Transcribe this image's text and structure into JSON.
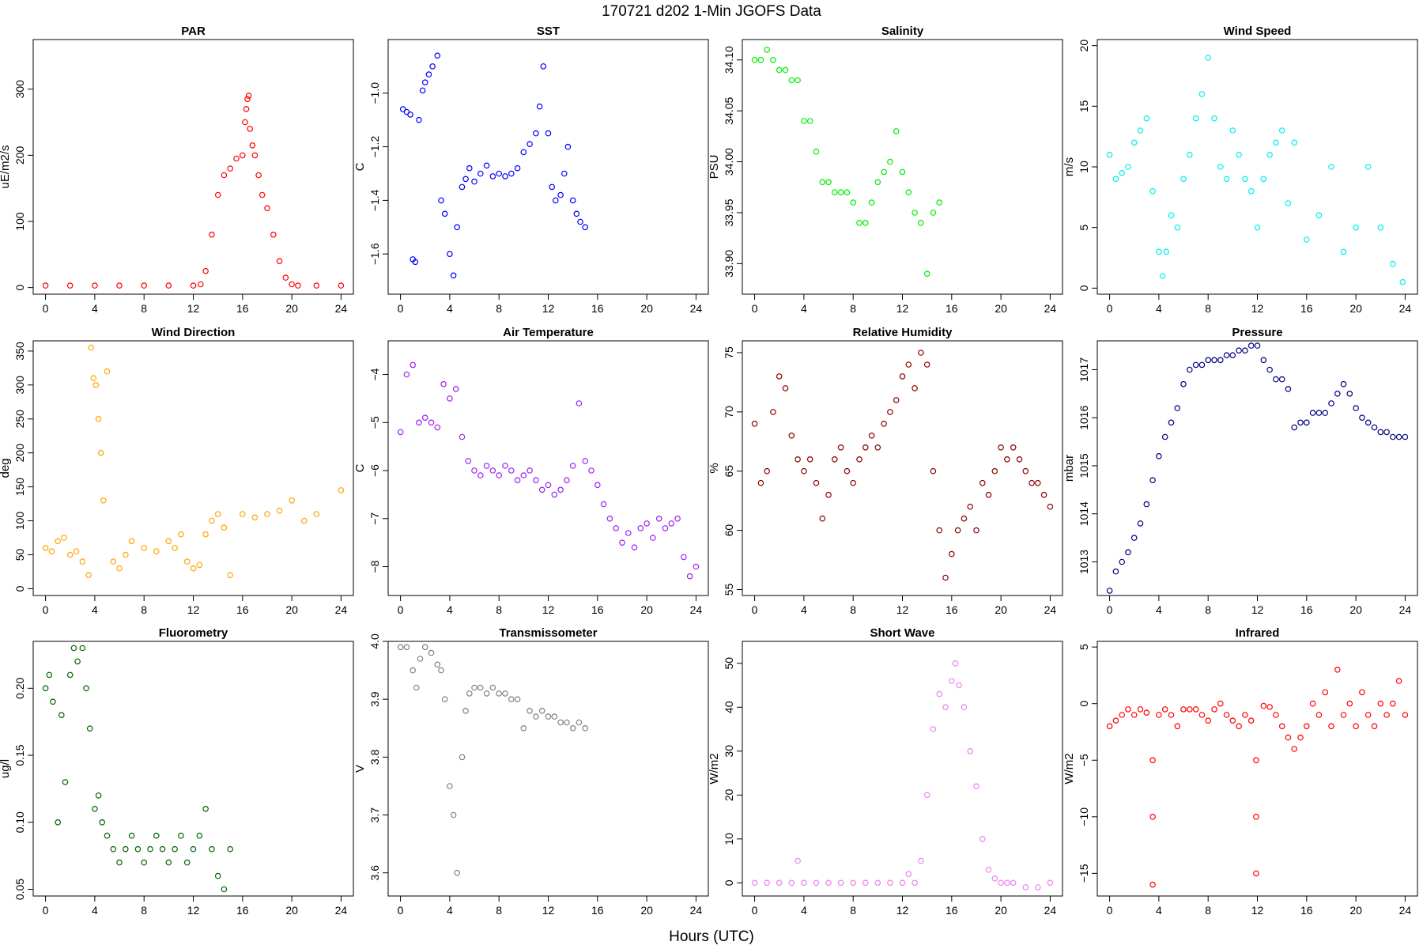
{
  "figure_title": "170721   d202   1-Min  JGOFS Data",
  "x_axis_label": "Hours (UTC)",
  "chart_data": [
    {
      "type": "scatter",
      "title": "PAR",
      "ylabel": "uE/m2/s",
      "color": "#ff0000",
      "xlim": [
        -1,
        25
      ],
      "ylim": [
        -10,
        375
      ],
      "xticks": [
        0,
        4,
        8,
        12,
        16,
        20,
        24
      ],
      "yticks": [
        0,
        100,
        200,
        300
      ],
      "x": [
        0,
        2,
        4,
        6,
        8,
        10,
        12,
        12.6,
        13,
        13.5,
        14,
        14.5,
        15,
        15.5,
        16,
        16.3,
        16.5,
        16.8,
        17,
        17.3,
        17.6,
        18,
        18.5,
        19,
        19.5,
        20,
        20.5,
        22,
        24,
        16.2,
        16.4,
        16.6
      ],
      "y": [
        3,
        3,
        3,
        3,
        3,
        3,
        3,
        5,
        25,
        80,
        140,
        170,
        180,
        195,
        200,
        270,
        290,
        215,
        200,
        170,
        140,
        120,
        80,
        40,
        15,
        5,
        3,
        3,
        3,
        250,
        285,
        240
      ]
    },
    {
      "type": "scatter",
      "title": "SST",
      "ylabel": "C",
      "color": "#0000ff",
      "xlim": [
        -1,
        25
      ],
      "ylim": [
        -1.75,
        -0.8
      ],
      "xticks": [
        0,
        4,
        8,
        12,
        16,
        20,
        24
      ],
      "yticks": [
        -1.6,
        -1.4,
        -1.2,
        -1.0
      ],
      "x": [
        0.2,
        0.5,
        0.8,
        1,
        1.2,
        1.5,
        1.8,
        2,
        2.3,
        2.6,
        3,
        3.3,
        3.6,
        4,
        4.3,
        4.6,
        5,
        5.3,
        5.6,
        6,
        6.5,
        7,
        7.5,
        8,
        8.5,
        9,
        9.5,
        10,
        10.5,
        11,
        11.3,
        11.6,
        12,
        12.3,
        12.6,
        13,
        13.3,
        13.6,
        14,
        14.3,
        14.6,
        15
      ],
      "y": [
        -1.06,
        -1.07,
        -1.08,
        -1.62,
        -1.63,
        -1.1,
        -0.99,
        -0.96,
        -0.93,
        -0.9,
        -0.86,
        -1.4,
        -1.45,
        -1.6,
        -1.68,
        -1.5,
        -1.35,
        -1.32,
        -1.28,
        -1.33,
        -1.3,
        -1.27,
        -1.31,
        -1.3,
        -1.31,
        -1.3,
        -1.28,
        -1.22,
        -1.19,
        -1.15,
        -1.05,
        -0.9,
        -1.15,
        -1.35,
        -1.4,
        -1.38,
        -1.3,
        -1.2,
        -1.4,
        -1.45,
        -1.48,
        -1.5
      ]
    },
    {
      "type": "scatter",
      "title": "Salinity",
      "ylabel": "PSU",
      "color": "#00ee00",
      "xlim": [
        -1,
        25
      ],
      "ylim": [
        33.87,
        34.12
      ],
      "xticks": [
        0,
        4,
        8,
        12,
        16,
        20,
        24
      ],
      "yticks": [
        33.9,
        33.95,
        34.0,
        34.05,
        34.1
      ],
      "x": [
        0,
        0.5,
        1,
        1.5,
        2,
        2.5,
        3,
        3.5,
        4,
        4.5,
        5,
        5.5,
        6,
        6.5,
        7,
        7.5,
        8,
        8.5,
        9,
        9.5,
        10,
        10.5,
        11,
        11.5,
        12,
        12.5,
        13,
        13.5,
        14,
        14.5,
        15
      ],
      "y": [
        34.1,
        34.1,
        34.11,
        34.1,
        34.09,
        34.09,
        34.08,
        34.08,
        34.04,
        34.04,
        34.01,
        33.98,
        33.98,
        33.97,
        33.97,
        33.97,
        33.96,
        33.94,
        33.94,
        33.96,
        33.98,
        33.99,
        34.0,
        34.03,
        33.99,
        33.97,
        33.95,
        33.94,
        33.89,
        33.95,
        33.96
      ]
    },
    {
      "type": "scatter",
      "title": "Wind Speed",
      "ylabel": "m/s",
      "color": "#00eeee",
      "xlim": [
        -1,
        25
      ],
      "ylim": [
        -0.5,
        20.5
      ],
      "xticks": [
        0,
        4,
        8,
        12,
        16,
        20,
        24
      ],
      "yticks": [
        0,
        5,
        10,
        15,
        20
      ],
      "x": [
        0,
        0.5,
        1,
        1.5,
        2,
        2.5,
        3,
        3.5,
        4,
        4.3,
        4.6,
        5,
        5.5,
        6,
        6.5,
        7,
        7.5,
        8,
        8.5,
        9,
        9.5,
        10,
        10.5,
        11,
        11.5,
        12,
        12.5,
        13,
        13.5,
        14,
        14.5,
        15,
        16,
        17,
        18,
        19,
        20,
        21,
        22,
        23,
        23.8
      ],
      "y": [
        11,
        9,
        9.5,
        10,
        12,
        13,
        14,
        8,
        3,
        1,
        3,
        6,
        5,
        9,
        11,
        14,
        16,
        19,
        14,
        10,
        9,
        13,
        11,
        9,
        8,
        5,
        9,
        11,
        12,
        13,
        7,
        12,
        4,
        6,
        10,
        3,
        5,
        10,
        5,
        2,
        0.5
      ]
    },
    {
      "type": "scatter",
      "title": "Wind Direction",
      "ylabel": "deg",
      "color": "#ffa500",
      "xlim": [
        -1,
        25
      ],
      "ylim": [
        -10,
        365
      ],
      "xticks": [
        0,
        4,
        8,
        12,
        16,
        20,
        24
      ],
      "yticks": [
        0,
        50,
        100,
        150,
        200,
        250,
        300,
        350
      ],
      "x": [
        0,
        0.5,
        1,
        1.5,
        2,
        2.5,
        3,
        3.5,
        3.7,
        3.9,
        4.1,
        4.3,
        4.5,
        4.7,
        5,
        5.5,
        6,
        6.5,
        7,
        8,
        9,
        10,
        10.5,
        11,
        11.5,
        12,
        12.5,
        13,
        13.5,
        14,
        14.5,
        15,
        16,
        17,
        18,
        19,
        20,
        21,
        22,
        24
      ],
      "y": [
        60,
        55,
        70,
        75,
        50,
        55,
        40,
        20,
        355,
        310,
        300,
        250,
        200,
        130,
        320,
        40,
        30,
        50,
        70,
        60,
        55,
        70,
        60,
        80,
        40,
        30,
        35,
        80,
        100,
        110,
        90,
        20,
        110,
        105,
        110,
        115,
        130,
        100,
        110,
        145
      ]
    },
    {
      "type": "scatter",
      "title": "Air Temperature",
      "ylabel": "C",
      "color": "#a020f0",
      "xlim": [
        -1,
        25
      ],
      "ylim": [
        -8.6,
        -3.3
      ],
      "xticks": [
        0,
        4,
        8,
        12,
        16,
        20,
        24
      ],
      "yticks": [
        -8,
        -7,
        -6,
        -5,
        -4
      ],
      "x": [
        0,
        0.5,
        1,
        1.5,
        2,
        2.5,
        3,
        3.5,
        4,
        4.5,
        5,
        5.5,
        6,
        6.5,
        7,
        7.5,
        8,
        8.5,
        9,
        9.5,
        10,
        10.5,
        11,
        11.5,
        12,
        12.5,
        13,
        13.5,
        14,
        14.5,
        15,
        15.5,
        16,
        16.5,
        17,
        17.5,
        18,
        18.5,
        19,
        19.5,
        20,
        20.5,
        21,
        21.5,
        22,
        22.5,
        23,
        23.5,
        24
      ],
      "y": [
        -5.2,
        -4,
        -3.8,
        -5,
        -4.9,
        -5,
        -5.1,
        -4.2,
        -4.5,
        -4.3,
        -5.3,
        -5.8,
        -6,
        -6.1,
        -5.9,
        -6,
        -6.1,
        -5.9,
        -6,
        -6.2,
        -6.1,
        -6,
        -6.2,
        -6.4,
        -6.3,
        -6.5,
        -6.4,
        -6.2,
        -5.9,
        -4.6,
        -5.8,
        -6,
        -6.3,
        -6.7,
        -7,
        -7.2,
        -7.5,
        -7.3,
        -7.6,
        -7.2,
        -7.1,
        -7.4,
        -7,
        -7.2,
        -7.1,
        -7,
        -7.8,
        -8.2,
        -8
      ]
    },
    {
      "type": "scatter",
      "title": "Relative Humidity",
      "ylabel": "%",
      "color": "#8b0000",
      "xlim": [
        -1,
        25
      ],
      "ylim": [
        54.5,
        76
      ],
      "xticks": [
        0,
        4,
        8,
        12,
        16,
        20,
        24
      ],
      "yticks": [
        55,
        60,
        65,
        70,
        75
      ],
      "x": [
        0,
        0.5,
        1,
        1.5,
        2,
        2.5,
        3,
        3.5,
        4,
        4.5,
        5,
        5.5,
        6,
        6.5,
        7,
        7.5,
        8,
        8.5,
        9,
        9.5,
        10,
        10.5,
        11,
        11.5,
        12,
        12.5,
        13,
        13.5,
        14,
        14.5,
        15,
        15.5,
        16,
        16.5,
        17,
        17.5,
        18,
        18.5,
        19,
        19.5,
        20,
        20.5,
        21,
        21.5,
        22,
        22.5,
        23,
        23.5,
        24
      ],
      "y": [
        69,
        64,
        65,
        70,
        73,
        72,
        68,
        66,
        65,
        66,
        64,
        61,
        63,
        66,
        67,
        65,
        64,
        66,
        67,
        68,
        67,
        69,
        70,
        71,
        73,
        74,
        72,
        75,
        74,
        65,
        60,
        56,
        58,
        60,
        61,
        62,
        60,
        64,
        63,
        65,
        67,
        66,
        67,
        66,
        65,
        64,
        64,
        63,
        62
      ]
    },
    {
      "type": "scatter",
      "title": "Pressure",
      "ylabel": "mbar",
      "color": "#000080",
      "xlim": [
        -1,
        25
      ],
      "ylim": [
        1012.3,
        1017.6
      ],
      "xticks": [
        0,
        4,
        8,
        12,
        16,
        20,
        24
      ],
      "yticks": [
        1013,
        1014,
        1015,
        1016,
        1017
      ],
      "x": [
        0,
        0.5,
        1,
        1.5,
        2,
        2.5,
        3,
        3.5,
        4,
        4.5,
        5,
        5.5,
        6,
        6.5,
        7,
        7.5,
        8,
        8.5,
        9,
        9.5,
        10,
        10.5,
        11,
        11.5,
        12,
        12.5,
        13,
        13.5,
        14,
        14.5,
        15,
        15.5,
        16,
        16.5,
        17,
        17.5,
        18,
        18.5,
        19,
        19.5,
        20,
        20.5,
        21,
        21.5,
        22,
        22.5,
        23,
        23.5,
        24
      ],
      "y": [
        1012.4,
        1012.8,
        1013,
        1013.2,
        1013.5,
        1013.8,
        1014.2,
        1014.7,
        1015.2,
        1015.6,
        1015.9,
        1016.2,
        1016.7,
        1017,
        1017.1,
        1017.1,
        1017.2,
        1017.2,
        1017.2,
        1017.3,
        1017.3,
        1017.4,
        1017.4,
        1017.5,
        1017.5,
        1017.2,
        1017,
        1016.8,
        1016.8,
        1016.6,
        1015.8,
        1015.9,
        1015.9,
        1016.1,
        1016.1,
        1016.1,
        1016.3,
        1016.5,
        1016.7,
        1016.5,
        1016.2,
        1016,
        1015.9,
        1015.8,
        1015.7,
        1015.7,
        1015.6,
        1015.6,
        1015.6
      ]
    },
    {
      "type": "scatter",
      "title": "Fluorometry",
      "ylabel": "ug/l",
      "color": "#006400",
      "xlim": [
        -1,
        25
      ],
      "ylim": [
        0.045,
        0.235
      ],
      "xticks": [
        0,
        4,
        8,
        12,
        16,
        20,
        24
      ],
      "yticks": [
        0.05,
        0.1,
        0.15,
        0.2
      ],
      "x": [
        0,
        0.3,
        0.6,
        1,
        1.3,
        1.6,
        2,
        2.3,
        2.6,
        3,
        3.3,
        3.6,
        4,
        4.3,
        4.6,
        5,
        5.5,
        6,
        6.5,
        7,
        7.5,
        8,
        8.5,
        9,
        9.5,
        10,
        10.5,
        11,
        11.5,
        12,
        12.5,
        13,
        13.5,
        14,
        14.5,
        15
      ],
      "y": [
        0.2,
        0.21,
        0.19,
        0.1,
        0.18,
        0.13,
        0.21,
        0.23,
        0.22,
        0.23,
        0.2,
        0.17,
        0.11,
        0.12,
        0.1,
        0.09,
        0.08,
        0.07,
        0.08,
        0.09,
        0.08,
        0.07,
        0.08,
        0.09,
        0.08,
        0.07,
        0.08,
        0.09,
        0.07,
        0.08,
        0.09,
        0.11,
        0.08,
        0.06,
        0.05,
        0.08
      ]
    },
    {
      "type": "scatter",
      "title": "Transmissometer",
      "ylabel": "V",
      "color": "#808080",
      "xlim": [
        -1,
        25
      ],
      "ylim": [
        3.56,
        4.0
      ],
      "xticks": [
        0,
        4,
        8,
        12,
        16,
        20,
        24
      ],
      "yticks": [
        3.6,
        3.7,
        3.8,
        3.9,
        4.0
      ],
      "x": [
        0,
        0.5,
        1,
        1.3,
        1.6,
        2,
        2.5,
        3,
        3.3,
        3.6,
        4,
        4.3,
        4.6,
        5,
        5.3,
        5.6,
        6,
        6.5,
        7,
        7.5,
        8,
        8.5,
        9,
        9.5,
        10,
        10.5,
        11,
        11.5,
        12,
        12.5,
        13,
        13.5,
        14,
        14.5,
        15
      ],
      "y": [
        3.99,
        3.99,
        3.95,
        3.92,
        3.97,
        3.99,
        3.98,
        3.96,
        3.95,
        3.9,
        3.75,
        3.7,
        3.6,
        3.8,
        3.88,
        3.91,
        3.92,
        3.92,
        3.91,
        3.92,
        3.91,
        3.91,
        3.9,
        3.9,
        3.85,
        3.88,
        3.87,
        3.88,
        3.87,
        3.87,
        3.86,
        3.86,
        3.85,
        3.86,
        3.85
      ]
    },
    {
      "type": "scatter",
      "title": "Short Wave",
      "ylabel": "W/m2",
      "color": "#ee82ee",
      "xlim": [
        -1,
        25
      ],
      "ylim": [
        -3,
        55
      ],
      "xticks": [
        0,
        4,
        8,
        12,
        16,
        20,
        24
      ],
      "yticks": [
        0,
        10,
        20,
        30,
        40,
        50
      ],
      "x": [
        0,
        1,
        2,
        3,
        3.5,
        4,
        5,
        6,
        7,
        8,
        9,
        10,
        11,
        12,
        12.5,
        13,
        13.5,
        14,
        14.5,
        15,
        15.5,
        16,
        16.3,
        16.6,
        17,
        17.5,
        18,
        18.5,
        19,
        19.5,
        20,
        20.5,
        21,
        22,
        23,
        24
      ],
      "y": [
        0,
        0,
        0,
        0,
        5,
        0,
        0,
        0,
        0,
        0,
        0,
        0,
        0,
        0,
        2,
        0,
        5,
        20,
        35,
        43,
        40,
        46,
        50,
        45,
        40,
        30,
        22,
        10,
        3,
        1,
        0,
        0,
        0,
        -1,
        -1,
        0
      ],
      "_note": ""
    },
    {
      "type": "scatter",
      "title": "Infrared",
      "ylabel": "W/m2",
      "color": "#ff0000",
      "xlim": [
        -1,
        25
      ],
      "ylim": [
        -17,
        5.5
      ],
      "xticks": [
        0,
        4,
        8,
        12,
        16,
        20,
        24
      ],
      "yticks": [
        -15,
        -10,
        -5,
        0,
        5
      ],
      "x": [
        0,
        0.5,
        1,
        1.5,
        2,
        2.5,
        3,
        3.5,
        3.5,
        3.5,
        4,
        4.5,
        5,
        5.5,
        6,
        6.5,
        7,
        7.5,
        8,
        8.5,
        9,
        9.5,
        10,
        10.5,
        11,
        11.5,
        11.9,
        11.9,
        11.9,
        12.5,
        13,
        13.5,
        14,
        14.5,
        15,
        15.5,
        16,
        16.5,
        17,
        17.5,
        18,
        18.5,
        19,
        19.5,
        20,
        20.5,
        21,
        21.5,
        22,
        22.5,
        23,
        23.5,
        24
      ],
      "y": [
        -2,
        -1.5,
        -1,
        -0.5,
        -1,
        -0.5,
        -0.8,
        -5,
        -10,
        -16,
        -1,
        -0.5,
        -1,
        -2,
        -0.5,
        -0.5,
        -0.5,
        -1,
        -1.5,
        -0.5,
        0,
        -1,
        -1.5,
        -2,
        -1,
        -1.5,
        -5,
        -10,
        -15,
        -0.2,
        -0.3,
        -1,
        -2,
        -3,
        -4,
        -3,
        -2,
        0,
        -1,
        1,
        -2,
        3,
        -1,
        0,
        -2,
        1,
        -1,
        -2,
        0,
        -1,
        0,
        2,
        -1
      ]
    }
  ]
}
